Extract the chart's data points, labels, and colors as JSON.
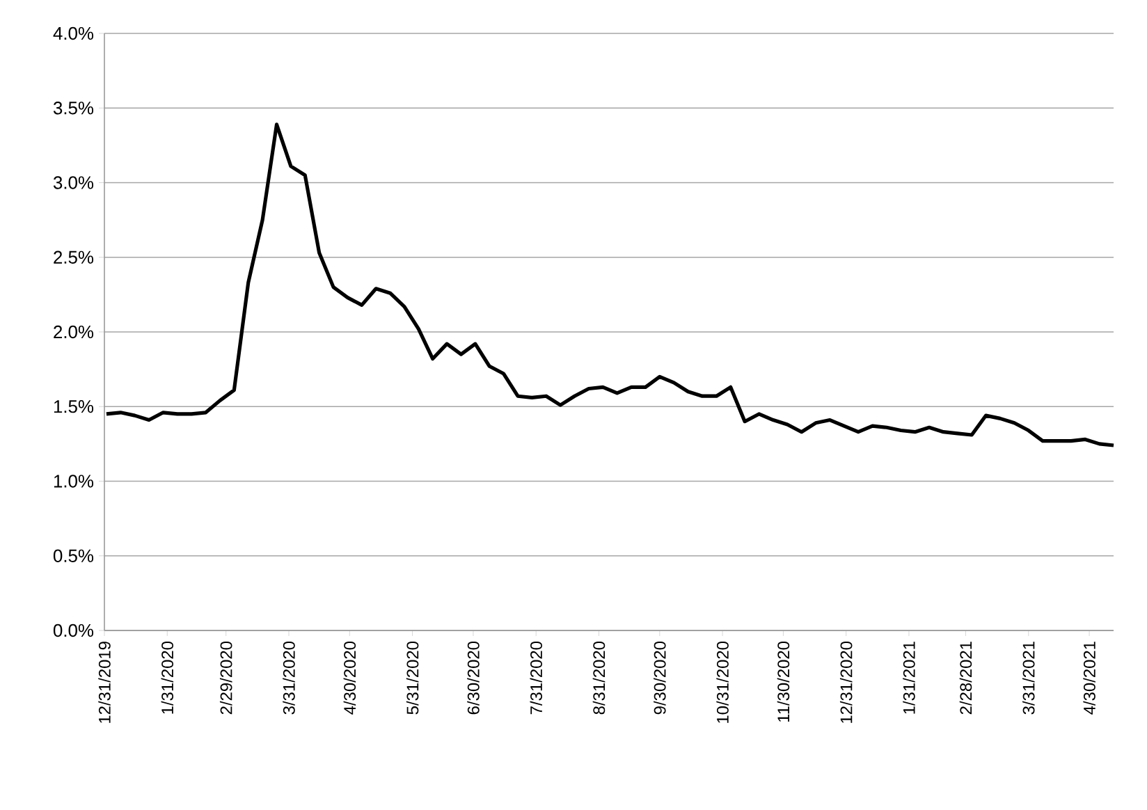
{
  "chart_data": {
    "type": "line",
    "color": "#000000",
    "grid": "y",
    "x": [
      "2020-01-01",
      "2020-01-08",
      "2020-01-15",
      "2020-01-22",
      "2020-01-29",
      "2020-02-05",
      "2020-02-12",
      "2020-02-19",
      "2020-02-26",
      "2020-03-04",
      "2020-03-11",
      "2020-03-18",
      "2020-03-25",
      "2020-04-01",
      "2020-04-08",
      "2020-04-15",
      "2020-04-22",
      "2020-04-29",
      "2020-05-06",
      "2020-05-13",
      "2020-05-20",
      "2020-05-27",
      "2020-06-03",
      "2020-06-10",
      "2020-06-17",
      "2020-06-24",
      "2020-07-01",
      "2020-07-08",
      "2020-07-15",
      "2020-07-22",
      "2020-07-29",
      "2020-08-05",
      "2020-08-12",
      "2020-08-19",
      "2020-08-26",
      "2020-09-02",
      "2020-09-09",
      "2020-09-16",
      "2020-09-23",
      "2020-09-30",
      "2020-10-07",
      "2020-10-14",
      "2020-10-21",
      "2020-10-28",
      "2020-11-04",
      "2020-11-11",
      "2020-11-18",
      "2020-11-25",
      "2020-12-02",
      "2020-12-09",
      "2020-12-16",
      "2020-12-23",
      "2020-12-30",
      "2021-01-06",
      "2021-01-13",
      "2021-01-20",
      "2021-01-27",
      "2021-02-03",
      "2021-02-10",
      "2021-02-17",
      "2021-02-24",
      "2021-03-03",
      "2021-03-10",
      "2021-03-17",
      "2021-03-24",
      "2021-03-31",
      "2021-04-07",
      "2021-04-14",
      "2021-04-21",
      "2021-04-28",
      "2021-05-05",
      "2021-05-12"
    ],
    "values": [
      1.45,
      1.46,
      1.44,
      1.41,
      1.46,
      1.45,
      1.45,
      1.46,
      1.54,
      1.61,
      2.33,
      2.75,
      3.39,
      3.11,
      3.05,
      2.53,
      2.3,
      2.23,
      2.18,
      2.29,
      2.26,
      2.17,
      2.02,
      1.82,
      1.92,
      1.85,
      1.92,
      1.77,
      1.72,
      1.57,
      1.56,
      1.57,
      1.51,
      1.57,
      1.62,
      1.63,
      1.59,
      1.63,
      1.63,
      1.7,
      1.66,
      1.6,
      1.57,
      1.57,
      1.63,
      1.4,
      1.45,
      1.41,
      1.38,
      1.33,
      1.39,
      1.41,
      1.37,
      1.33,
      1.37,
      1.36,
      1.34,
      1.33,
      1.36,
      1.33,
      1.32,
      1.31,
      1.44,
      1.42,
      1.39,
      1.34,
      1.27,
      1.27,
      1.27,
      1.28,
      1.25,
      1.24
    ],
    "xlim": [
      "2019-12-31",
      "2021-05-12"
    ],
    "xticks": [
      {
        "value": "2019-12-31",
        "label": "12/31/2019"
      },
      {
        "value": "2020-01-31",
        "label": "1/31/2020"
      },
      {
        "value": "2020-02-29",
        "label": "2/29/2020"
      },
      {
        "value": "2020-03-31",
        "label": "3/31/2020"
      },
      {
        "value": "2020-04-30",
        "label": "4/30/2020"
      },
      {
        "value": "2020-05-31",
        "label": "5/31/2020"
      },
      {
        "value": "2020-06-30",
        "label": "6/30/2020"
      },
      {
        "value": "2020-07-31",
        "label": "7/31/2020"
      },
      {
        "value": "2020-08-31",
        "label": "8/31/2020"
      },
      {
        "value": "2020-09-30",
        "label": "9/30/2020"
      },
      {
        "value": "2020-10-31",
        "label": "10/31/2020"
      },
      {
        "value": "2020-11-30",
        "label": "11/30/2020"
      },
      {
        "value": "2020-12-31",
        "label": "12/31/2020"
      },
      {
        "value": "2021-01-31",
        "label": "1/31/2021"
      },
      {
        "value": "2021-02-28",
        "label": "2/28/2021"
      },
      {
        "value": "2021-03-31",
        "label": "3/31/2021"
      },
      {
        "value": "2021-04-30",
        "label": "4/30/2021"
      }
    ],
    "ylim": [
      0,
      4
    ],
    "yticks": [
      {
        "value": 0,
        "label": "0.0%"
      },
      {
        "value": 0.5,
        "label": "0.5%"
      },
      {
        "value": 1,
        "label": "1.0%"
      },
      {
        "value": 1.5,
        "label": "1.5%"
      },
      {
        "value": 2,
        "label": "2.0%"
      },
      {
        "value": 2.5,
        "label": "2.5%"
      },
      {
        "value": 3,
        "label": "3.0%"
      },
      {
        "value": 3.5,
        "label": "3.5%"
      },
      {
        "value": 4,
        "label": "4.0%"
      }
    ]
  }
}
